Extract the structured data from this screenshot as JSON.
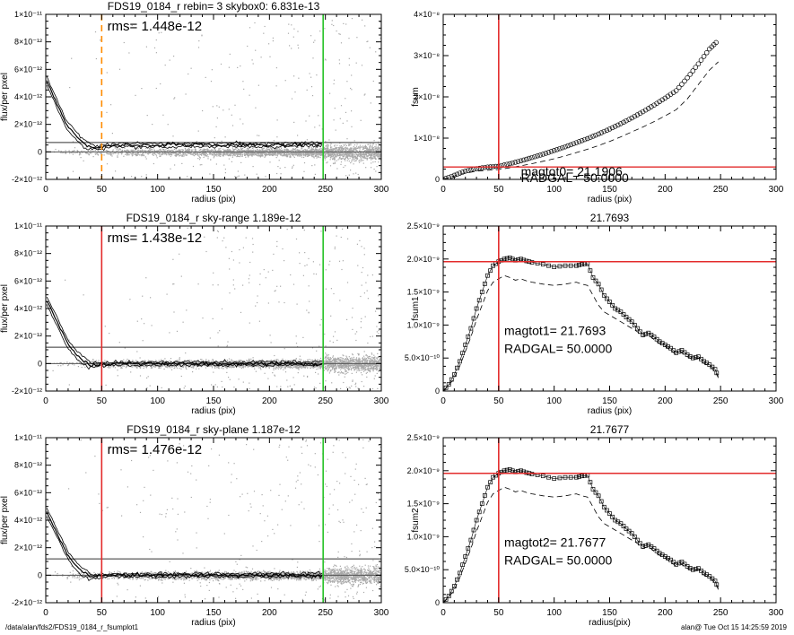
{
  "footer": {
    "path": "/data/alan/fds2/FDS19_0184_r_fsumplot1",
    "stamp": "alan@  Tue Oct 15 14:25:59 2019"
  },
  "chart_data": [
    {
      "type": "scatter",
      "title": "FDS19_0184_r rebin= 3    skybox0:  6.831e-13",
      "xlabel": "radius (pix)",
      "ylabel": "flux/per pxel",
      "xlim": [
        0,
        300
      ],
      "ylim": [
        -2e-12,
        1e-11
      ],
      "xticks": [
        "0",
        "50",
        "100",
        "150",
        "200",
        "250",
        "300"
      ],
      "yticks": [
        "-2×10⁻¹²",
        "0",
        "2×10⁻¹²",
        "4×10⁻¹²",
        "6×10⁻¹²",
        "8×10⁻¹²",
        "1×10⁻¹¹"
      ],
      "annotation": "rms= 1.448e-12",
      "hlines": [
        0,
        6.831e-13
      ],
      "vlines": [
        {
          "x": 50,
          "style": "orange-dashed"
        },
        {
          "x": 248,
          "style": "green"
        }
      ],
      "profile": [
        [
          1,
          5.2e-12
        ],
        [
          3,
          4.8e-12
        ],
        [
          5,
          4.4e-12
        ],
        [
          8,
          3.9e-12
        ],
        [
          11,
          3.3e-12
        ],
        [
          14,
          2.8e-12
        ],
        [
          17,
          2.2e-12
        ],
        [
          20,
          1.8e-12
        ],
        [
          24,
          1.5e-12
        ],
        [
          28,
          1.1e-12
        ],
        [
          32,
          8e-13
        ],
        [
          36,
          5e-13
        ],
        [
          40,
          4e-13
        ],
        [
          45,
          3e-13
        ],
        [
          50,
          3.5e-13
        ],
        [
          60,
          5e-13
        ],
        [
          80,
          5e-13
        ],
        [
          120,
          5e-13
        ],
        [
          160,
          5e-13
        ],
        [
          200,
          5e-13
        ],
        [
          248,
          5.5e-13
        ]
      ],
      "grid": false
    },
    {
      "type": "line",
      "title": "",
      "xlabel": "radius (pix)",
      "ylabel": "fsum",
      "xlim": [
        0,
        300
      ],
      "ylim": [
        0,
        4e-08
      ],
      "xticks": [
        "0",
        "50",
        "100",
        "150",
        "200",
        "250",
        "300"
      ],
      "yticks": [
        "0",
        "1×10⁻⁸",
        "2×10⁻⁸",
        "3×10⁻⁸",
        "4×10⁻⁸"
      ],
      "annotations": [
        "magtot0=       21.1906",
        "RADGAL=     50.0000"
      ],
      "hlines": [
        {
          "y": 3e-09,
          "style": "red"
        }
      ],
      "vlines": [
        {
          "x": 50,
          "style": "red"
        }
      ],
      "x": [
        0,
        10,
        20,
        30,
        40,
        50,
        60,
        70,
        80,
        90,
        100,
        110,
        120,
        130,
        140,
        150,
        160,
        170,
        180,
        190,
        200,
        210,
        220,
        230,
        240,
        248
      ],
      "series": [
        {
          "name": "",
          "style": "circles",
          "values": [
            0,
            1e-09,
            2e-09,
            2.6e-09,
            3e-09,
            3.2e-09,
            3.8e-09,
            4.5e-09,
            5.3e-09,
            6.1e-09,
            7e-09,
            7.9e-09,
            8.9e-09,
            9.9e-09,
            1.1e-08,
            1.22e-08,
            1.35e-08,
            1.49e-08,
            1.64e-08,
            1.8e-08,
            1.97e-08,
            2.15e-08,
            2.46e-08,
            2.8e-08,
            3.16e-08,
            3.37e-08
          ]
        },
        {
          "name": "",
          "style": "dashed",
          "values": [
            0,
            8e-10,
            1.5e-09,
            2e-09,
            2.2e-09,
            2.4e-09,
            2.8e-09,
            3.3e-09,
            3.8e-09,
            4.4e-09,
            5e-09,
            5.7e-09,
            6.5e-09,
            7.3e-09,
            8.2e-09,
            9.2e-09,
            1.03e-08,
            1.15e-08,
            1.27e-08,
            1.4e-08,
            1.54e-08,
            1.69e-08,
            1.95e-08,
            2.3e-08,
            2.65e-08,
            2.85e-08
          ]
        }
      ],
      "grid": false
    },
    {
      "type": "scatter",
      "title": "FDS19_0184_r sky-range  1.189e-12",
      "xlabel": "radius (pix)",
      "ylabel": "flux/per pxel",
      "xlim": [
        0,
        300
      ],
      "ylim": [
        -2e-12,
        1e-11
      ],
      "xticks": [
        "0",
        "50",
        "100",
        "150",
        "200",
        "250",
        "300"
      ],
      "yticks": [
        "-2×10⁻¹²",
        "0",
        "2×10⁻¹²",
        "4×10⁻¹²",
        "6×10⁻¹²",
        "8×10⁻¹²",
        "1×10⁻¹¹"
      ],
      "annotation": "rms= 1.438e-12",
      "hlines": [
        0,
        1.189e-12
      ],
      "vlines": [
        {
          "x": 50,
          "style": "red"
        },
        {
          "x": 248,
          "style": "green"
        }
      ],
      "profile": [
        [
          1,
          4.6e-12
        ],
        [
          3,
          4.2e-12
        ],
        [
          5,
          3.9e-12
        ],
        [
          8,
          3.4e-12
        ],
        [
          11,
          2.9e-12
        ],
        [
          14,
          2.4e-12
        ],
        [
          17,
          1.9e-12
        ],
        [
          20,
          1.4e-12
        ],
        [
          24,
          1e-12
        ],
        [
          28,
          6e-13
        ],
        [
          32,
          3e-13
        ],
        [
          36,
          1e-13
        ],
        [
          40,
          -1e-13
        ],
        [
          45,
          -1e-13
        ],
        [
          50,
          -5e-14
        ],
        [
          60,
          0
        ],
        [
          80,
          0
        ],
        [
          120,
          0
        ],
        [
          160,
          0
        ],
        [
          200,
          0
        ],
        [
          248,
          0
        ]
      ],
      "grid": false
    },
    {
      "type": "scatter",
      "title": "21.7693",
      "xlabel": "radius (pix)",
      "ylabel": "fsum1",
      "xlim": [
        0,
        300
      ],
      "ylim": [
        0,
        2.5e-09
      ],
      "xticks": [
        "0",
        "50",
        "100",
        "150",
        "200",
        "250",
        "300"
      ],
      "yticks": [
        "0",
        "5.0×10⁻¹⁰",
        "1.0×10⁻⁹",
        "1.5×10⁻⁹",
        "2.0×10⁻⁹",
        "2.5×10⁻⁹"
      ],
      "annotations": [
        "magtot1=      21.7693",
        "RADGAL=     50.0000"
      ],
      "hlines": [
        {
          "y": 1.96e-09,
          "style": "red"
        }
      ],
      "vlines": [
        {
          "x": 50,
          "style": "red"
        }
      ],
      "x": [
        0,
        5,
        10,
        15,
        20,
        25,
        30,
        35,
        40,
        45,
        50,
        55,
        60,
        65,
        70,
        75,
        80,
        90,
        100,
        110,
        120,
        125,
        130,
        135,
        140,
        145,
        150,
        155,
        160,
        165,
        170,
        175,
        180,
        185,
        190,
        195,
        200,
        205,
        210,
        215,
        220,
        225,
        230,
        235,
        240,
        245,
        248
      ],
      "series": [
        {
          "name": "",
          "style": "squares",
          "values": [
            0.0,
            1e-10,
            2.5e-10,
            4.5e-10,
            7e-10,
            9.5e-10,
            1.25e-09,
            1.5e-09,
            1.75e-09,
            1.9e-09,
            1.96e-09,
            2e-09,
            2.02e-09,
            1.98e-09,
            2e-09,
            1.97e-09,
            1.95e-09,
            1.92e-09,
            1.88e-09,
            1.9e-09,
            1.9e-09,
            1.92e-09,
            1.93e-09,
            1.72e-09,
            1.62e-09,
            1.45e-09,
            1.35e-09,
            1.25e-09,
            1.2e-09,
            1.12e-09,
            1.05e-09,
            9.5e-10,
            8.5e-10,
            8.8e-10,
            8.2e-10,
            7.5e-10,
            7e-10,
            6.5e-10,
            5.8e-10,
            6.2e-10,
            5.5e-10,
            5e-10,
            5.2e-10,
            4.5e-10,
            4e-10,
            3.3e-10,
            2.2e-10
          ]
        },
        {
          "name": "",
          "style": "dashed",
          "values": [
            0.0,
            8e-11,
            2e-10,
            3.8e-10,
            6e-10,
            8.2e-10,
            1.08e-09,
            1.3e-09,
            1.52e-09,
            1.65e-09,
            1.7e-09,
            1.75e-09,
            1.72e-09,
            1.68e-09,
            1.7e-09,
            1.67e-09,
            1.65e-09,
            1.62e-09,
            1.6e-09,
            1.62e-09,
            1.65e-09,
            1.62e-09,
            1.6e-09,
            1.45e-09,
            1.3e-09,
            1.2e-09,
            1.15e-09,
            1.1e-09,
            1.05e-09,
            1e-09,
            9.5e-10,
            9e-10,
            8.2e-10,
            8.5e-10,
            7.8e-10,
            7.2e-10,
            6.8e-10,
            6.2e-10,
            5.5e-10,
            5.8e-10,
            5.2e-10,
            4.8e-10,
            5e-10,
            4.2e-10,
            3.8e-10,
            3e-10,
            2e-10
          ]
        }
      ],
      "grid": false
    },
    {
      "type": "scatter",
      "title": "FDS19_0184_r sky-plane  1.187e-12",
      "xlabel": "radius (pix)",
      "ylabel": "flux/per pxel",
      "xlim": [
        0,
        300
      ],
      "ylim": [
        -2e-12,
        1e-11
      ],
      "xticks": [
        "0",
        "50",
        "100",
        "150",
        "200",
        "250",
        "300"
      ],
      "yticks": [
        "-2×10⁻¹²",
        "0",
        "2×10⁻¹²",
        "4×10⁻¹²",
        "6×10⁻¹²",
        "8×10⁻¹²",
        "1×10⁻¹¹"
      ],
      "annotation": "rms= 1.476e-12",
      "hlines": [
        0,
        1.187e-12
      ],
      "vlines": [
        {
          "x": 50,
          "style": "red"
        },
        {
          "x": 248,
          "style": "green"
        }
      ],
      "profile": [
        [
          1,
          4.6e-12
        ],
        [
          3,
          4.2e-12
        ],
        [
          5,
          3.9e-12
        ],
        [
          8,
          3.4e-12
        ],
        [
          11,
          2.9e-12
        ],
        [
          14,
          2.4e-12
        ],
        [
          17,
          1.9e-12
        ],
        [
          20,
          1.4e-12
        ],
        [
          24,
          1e-12
        ],
        [
          28,
          6e-13
        ],
        [
          32,
          3e-13
        ],
        [
          36,
          1e-13
        ],
        [
          40,
          -1e-13
        ],
        [
          45,
          -1e-13
        ],
        [
          50,
          -5e-14
        ],
        [
          60,
          0
        ],
        [
          80,
          0
        ],
        [
          120,
          0
        ],
        [
          160,
          0
        ],
        [
          200,
          0
        ],
        [
          248,
          0
        ]
      ],
      "grid": false
    },
    {
      "type": "scatter",
      "title": "21.7677",
      "xlabel": "radius(pix)",
      "ylabel": "fsum2",
      "xlim": [
        0,
        300
      ],
      "ylim": [
        0,
        2.5e-09
      ],
      "xticks": [
        "0",
        "50",
        "100",
        "150",
        "200",
        "250",
        "300"
      ],
      "yticks": [
        "0",
        "5.0×10⁻¹⁰",
        "1.0×10⁻⁹",
        "1.5×10⁻⁹",
        "2.0×10⁻⁹",
        "2.5×10⁻⁹"
      ],
      "annotations": [
        "magtot2=      21.7677",
        "RADGAL=     50.0000"
      ],
      "hlines": [
        {
          "y": 1.96e-09,
          "style": "red"
        }
      ],
      "vlines": [
        {
          "x": 50,
          "style": "red"
        }
      ],
      "x": [
        0,
        5,
        10,
        15,
        20,
        25,
        30,
        35,
        40,
        45,
        50,
        55,
        60,
        65,
        70,
        75,
        80,
        90,
        100,
        110,
        120,
        125,
        130,
        135,
        140,
        145,
        150,
        155,
        160,
        165,
        170,
        175,
        180,
        185,
        190,
        195,
        200,
        205,
        210,
        215,
        220,
        225,
        230,
        235,
        240,
        245,
        248
      ],
      "series": [
        {
          "name": "",
          "style": "squares",
          "values": [
            0.0,
            1e-10,
            2.5e-10,
            4.5e-10,
            7e-10,
            9.5e-10,
            1.25e-09,
            1.5e-09,
            1.75e-09,
            1.9e-09,
            1.96e-09,
            2e-09,
            2.02e-09,
            1.98e-09,
            2e-09,
            1.97e-09,
            1.95e-09,
            1.92e-09,
            1.88e-09,
            1.9e-09,
            1.9e-09,
            1.92e-09,
            1.93e-09,
            1.72e-09,
            1.62e-09,
            1.45e-09,
            1.35e-09,
            1.25e-09,
            1.2e-09,
            1.12e-09,
            1.05e-09,
            9.5e-10,
            8.5e-10,
            8.8e-10,
            8.2e-10,
            7.5e-10,
            7e-10,
            6.5e-10,
            5.8e-10,
            6.2e-10,
            5.5e-10,
            5e-10,
            5.2e-10,
            4.5e-10,
            4e-10,
            3.3e-10,
            2.2e-10
          ]
        },
        {
          "name": "",
          "style": "dashed",
          "values": [
            0.0,
            8e-11,
            2e-10,
            3.8e-10,
            6e-10,
            8.2e-10,
            1.08e-09,
            1.3e-09,
            1.52e-09,
            1.65e-09,
            1.7e-09,
            1.75e-09,
            1.72e-09,
            1.68e-09,
            1.7e-09,
            1.67e-09,
            1.65e-09,
            1.62e-09,
            1.6e-09,
            1.62e-09,
            1.65e-09,
            1.62e-09,
            1.6e-09,
            1.45e-09,
            1.3e-09,
            1.2e-09,
            1.15e-09,
            1.1e-09,
            1.05e-09,
            1e-09,
            9.5e-10,
            9e-10,
            8.2e-10,
            8.5e-10,
            7.8e-10,
            7.2e-10,
            6.8e-10,
            6.2e-10,
            5.5e-10,
            5.8e-10,
            5.2e-10,
            4.8e-10,
            5e-10,
            4.2e-10,
            3.8e-10,
            3e-10,
            2e-10
          ]
        }
      ],
      "grid": false
    }
  ]
}
